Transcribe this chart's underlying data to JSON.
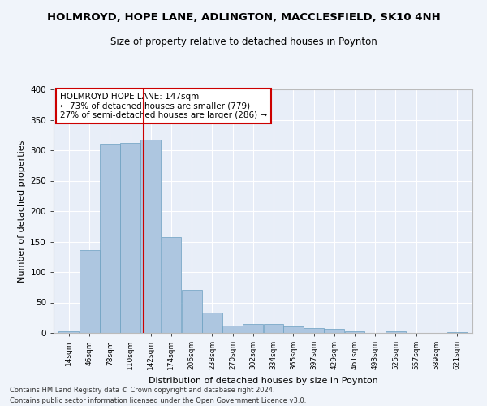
{
  "title": "HOLMROYD, HOPE LANE, ADLINGTON, MACCLESFIELD, SK10 4NH",
  "subtitle": "Size of property relative to detached houses in Poynton",
  "xlabel": "Distribution of detached houses by size in Poynton",
  "ylabel": "Number of detached properties",
  "footnote1": "Contains HM Land Registry data © Crown copyright and database right 2024.",
  "footnote2": "Contains public sector information licensed under the Open Government Licence v3.0.",
  "annotation_line1": "HOLMROYD HOPE LANE: 147sqm",
  "annotation_line2": "← 73% of detached houses are smaller (779)",
  "annotation_line3": "27% of semi-detached houses are larger (286) →",
  "property_size": 147,
  "bin_edges": [
    14,
    46,
    78,
    110,
    142,
    174,
    206,
    238,
    270,
    302,
    334,
    365,
    397,
    429,
    461,
    493,
    525,
    557,
    589,
    621,
    653
  ],
  "bar_heights": [
    3,
    136,
    311,
    312,
    318,
    157,
    71,
    33,
    12,
    15,
    15,
    11,
    8,
    7,
    3,
    0,
    3,
    0,
    0,
    2
  ],
  "bar_color": "#adc6e0",
  "bar_edge_color": "#6a9fc0",
  "vline_color": "#cc0000",
  "bg_color": "#e8eef8",
  "fig_bg_color": "#f0f4fa",
  "annotation_box_facecolor": "#ffffff",
  "annotation_box_edgecolor": "#cc0000",
  "ylim": [
    0,
    400
  ],
  "yticks": [
    0,
    50,
    100,
    150,
    200,
    250,
    300,
    350,
    400
  ],
  "title_fontsize": 9.5,
  "subtitle_fontsize": 8.5,
  "xlabel_fontsize": 8,
  "ylabel_fontsize": 8,
  "annotation_fontsize": 7.5,
  "tick_fontsize": 6.5,
  "footnote_fontsize": 6
}
